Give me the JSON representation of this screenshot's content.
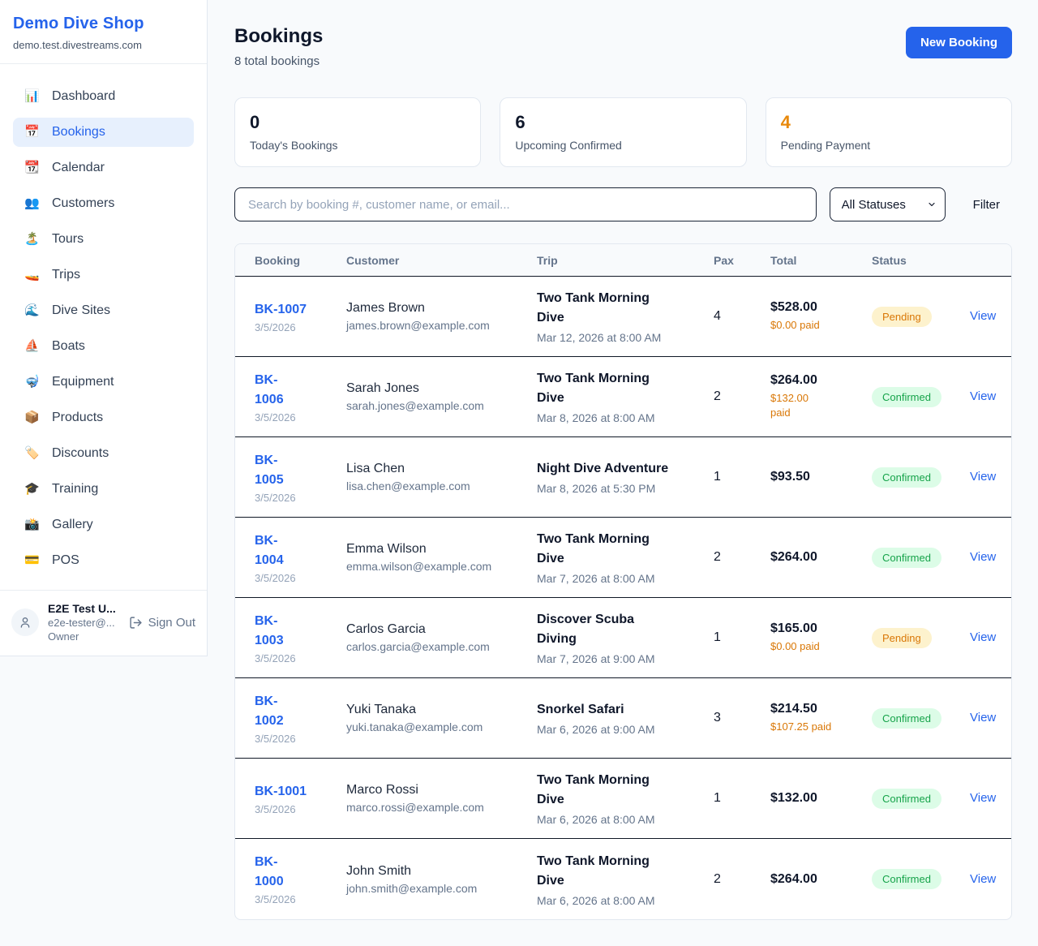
{
  "sidebar": {
    "brand": {
      "title": "Demo Dive Shop",
      "domain": "demo.test.divestreams.com"
    },
    "items": [
      {
        "icon": "📊",
        "label": "Dashboard",
        "key": "dashboard",
        "active": false
      },
      {
        "icon": "📅",
        "label": "Bookings",
        "key": "bookings",
        "active": true
      },
      {
        "icon": "📆",
        "label": "Calendar",
        "key": "calendar",
        "active": false
      },
      {
        "icon": "👥",
        "label": "Customers",
        "key": "customers",
        "active": false
      },
      {
        "icon": "🏝️",
        "label": "Tours",
        "key": "tours",
        "active": false
      },
      {
        "icon": "🚤",
        "label": "Trips",
        "key": "trips",
        "active": false
      },
      {
        "icon": "🌊",
        "label": "Dive Sites",
        "key": "dive-sites",
        "active": false
      },
      {
        "icon": "⛵",
        "label": "Boats",
        "key": "boats",
        "active": false
      },
      {
        "icon": "🤿",
        "label": "Equipment",
        "key": "equipment",
        "active": false
      },
      {
        "icon": "📦",
        "label": "Products",
        "key": "products",
        "active": false
      },
      {
        "icon": "🏷️",
        "label": "Discounts",
        "key": "discounts",
        "active": false
      },
      {
        "icon": "🎓",
        "label": "Training",
        "key": "training",
        "active": false
      },
      {
        "icon": "📸",
        "label": "Gallery",
        "key": "gallery",
        "active": false
      },
      {
        "icon": "💳",
        "label": "POS",
        "key": "pos",
        "active": false
      }
    ],
    "user": {
      "name": "E2E Test U...",
      "email": "e2e-tester@...",
      "role": "Owner",
      "sign_out_label": "Sign Out"
    }
  },
  "header": {
    "title": "Bookings",
    "subtitle": "8 total bookings",
    "new_booking_label": "New Booking"
  },
  "stats": [
    {
      "value": "0",
      "label": "Today's Bookings",
      "accent": "dark"
    },
    {
      "value": "6",
      "label": "Upcoming Confirmed",
      "accent": "dark"
    },
    {
      "value": "4",
      "label": "Pending Payment",
      "accent": "orange"
    }
  ],
  "toolbar": {
    "search_placeholder": "Search by booking #, customer name, or email...",
    "status_filter_value": "All Statuses",
    "filter_label": "Filter"
  },
  "table": {
    "columns": [
      "Booking",
      "Customer",
      "Trip",
      "Pax",
      "Total",
      "Status",
      ""
    ],
    "action_label": "View",
    "rows": [
      {
        "id_lines": [
          "BK-1007"
        ],
        "booking_date": "3/5/2026",
        "customer": "James Brown",
        "email": "james.brown@example.com",
        "trip_lines": [
          "Two Tank Morning",
          "Dive"
        ],
        "trip_date": "Mar 12, 2026 at 8:00 AM",
        "pax": "4",
        "total": "$528.00",
        "paid_lines": [
          "$0.00 paid"
        ],
        "status": "Pending"
      },
      {
        "id_lines": [
          "BK-",
          "1006"
        ],
        "booking_date": "3/5/2026",
        "customer": "Sarah Jones",
        "email": "sarah.jones@example.com",
        "trip_lines": [
          "Two Tank Morning",
          "Dive"
        ],
        "trip_date": "Mar 8, 2026 at 8:00 AM",
        "pax": "2",
        "total": "$264.00",
        "paid_lines": [
          "$132.00",
          "paid"
        ],
        "status": "Confirmed"
      },
      {
        "id_lines": [
          "BK-",
          "1005"
        ],
        "booking_date": "3/5/2026",
        "customer": "Lisa Chen",
        "email": "lisa.chen@example.com",
        "trip_lines": [
          "Night Dive Adventure"
        ],
        "trip_date": "Mar 8, 2026 at 5:30 PM",
        "pax": "1",
        "total": "$93.50",
        "paid_lines": [],
        "status": "Confirmed"
      },
      {
        "id_lines": [
          "BK-",
          "1004"
        ],
        "booking_date": "3/5/2026",
        "customer": "Emma Wilson",
        "email": "emma.wilson@example.com",
        "trip_lines": [
          "Two Tank Morning",
          "Dive"
        ],
        "trip_date": "Mar 7, 2026 at 8:00 AM",
        "pax": "2",
        "total": "$264.00",
        "paid_lines": [],
        "status": "Confirmed"
      },
      {
        "id_lines": [
          "BK-",
          "1003"
        ],
        "booking_date": "3/5/2026",
        "customer": "Carlos Garcia",
        "email": "carlos.garcia@example.com",
        "trip_lines": [
          "Discover Scuba",
          "Diving"
        ],
        "trip_date": "Mar 7, 2026 at 9:00 AM",
        "pax": "1",
        "total": "$165.00",
        "paid_lines": [
          "$0.00 paid"
        ],
        "status": "Pending"
      },
      {
        "id_lines": [
          "BK-",
          "1002"
        ],
        "booking_date": "3/5/2026",
        "customer": "Yuki Tanaka",
        "email": "yuki.tanaka@example.com",
        "trip_lines": [
          "Snorkel Safari"
        ],
        "trip_date": "Mar 6, 2026 at 9:00 AM",
        "pax": "3",
        "total": "$214.50",
        "paid_lines": [
          "$107.25 paid"
        ],
        "status": "Confirmed"
      },
      {
        "id_lines": [
          "BK-1001"
        ],
        "booking_date": "3/5/2026",
        "customer": "Marco Rossi",
        "email": "marco.rossi@example.com",
        "trip_lines": [
          "Two Tank Morning",
          "Dive"
        ],
        "trip_date": "Mar 6, 2026 at 8:00 AM",
        "pax": "1",
        "total": "$132.00",
        "paid_lines": [],
        "status": "Confirmed"
      },
      {
        "id_lines": [
          "BK-",
          "1000"
        ],
        "booking_date": "3/5/2026",
        "customer": "John Smith",
        "email": "john.smith@example.com",
        "trip_lines": [
          "Two Tank Morning",
          "Dive"
        ],
        "trip_date": "Mar 6, 2026 at 8:00 AM",
        "pax": "2",
        "total": "$264.00",
        "paid_lines": [],
        "status": "Confirmed"
      }
    ]
  },
  "colors": {
    "brand_blue": "#2563eb",
    "orange_accent": "#e8890c",
    "pending_text": "#d97706",
    "pending_bg": "#fdf2cd",
    "confirmed_text": "#16a34a",
    "confirmed_bg": "#dcfce7",
    "page_bg": "#f8fafc"
  }
}
